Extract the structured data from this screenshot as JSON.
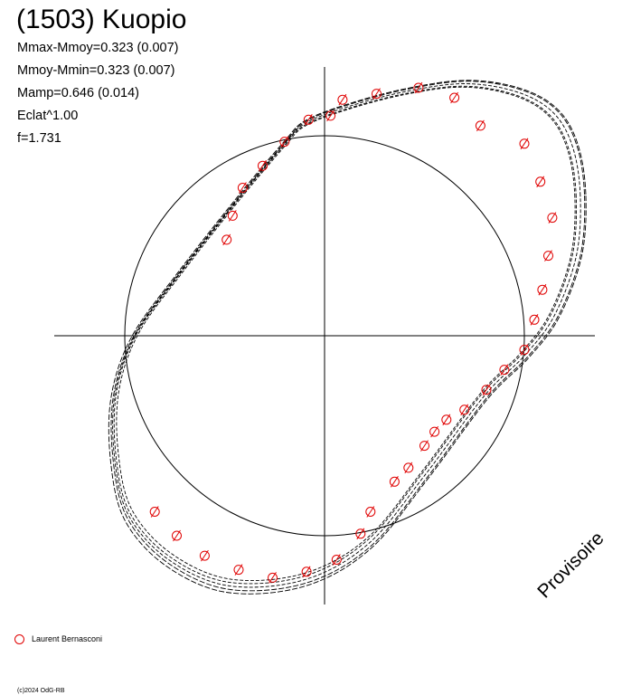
{
  "title": "(1503) Kuopio",
  "stats": {
    "mmax_mmoy": "Mmax-Mmoy=0.323 (0.007)",
    "mmoy_mmin": "Mmoy-Mmin=0.323 (0.007)",
    "mamp": "Mamp=0.646 (0.014)",
    "eclat": "Eclat^1.00",
    "f": "f=1.731"
  },
  "watermark": "Provisoire",
  "legend": {
    "label": "Laurent Bernasconi",
    "marker_color": "#e00000"
  },
  "copyright": "(c)2024 OdG-RB",
  "chart_data": {
    "type": "scatter",
    "projection": "polar lightcurve",
    "series": [
      {
        "name": "Laurent Bernasconi",
        "color": "#e00000",
        "points": [
          [
            0.03,
            1.1
          ],
          [
            0.09,
            1.18
          ],
          [
            0.26,
            1.21
          ],
          [
            0.47,
            1.24
          ],
          [
            0.65,
            1.19
          ],
          [
            0.78,
            1.05
          ],
          [
            1.0,
            0.96
          ],
          [
            1.08,
            0.77
          ],
          [
            1.14,
            0.59
          ],
          [
            1.12,
            0.4
          ],
          [
            1.09,
            0.23
          ],
          [
            1.05,
            0.08
          ],
          [
            1.0,
            -0.07
          ],
          [
            0.9,
            -0.17
          ],
          [
            0.81,
            -0.27
          ],
          [
            0.7,
            -0.37
          ],
          [
            0.61,
            -0.42
          ],
          [
            0.55,
            -0.48
          ],
          [
            0.5,
            -0.55
          ],
          [
            0.42,
            -0.66
          ],
          [
            0.35,
            -0.73
          ],
          [
            0.23,
            -0.88
          ],
          [
            0.18,
            -0.99
          ],
          [
            0.06,
            -1.12
          ],
          [
            -0.09,
            -1.18
          ],
          [
            -0.26,
            -1.21
          ],
          [
            -0.43,
            -1.17
          ],
          [
            -0.6,
            -1.1
          ],
          [
            -0.74,
            -1.0
          ],
          [
            -0.85,
            -0.88
          ],
          [
            -0.49,
            0.48
          ],
          [
            -0.46,
            0.6
          ],
          [
            -0.41,
            0.74
          ],
          [
            -0.31,
            0.85
          ],
          [
            -0.2,
            0.97
          ],
          [
            -0.08,
            1.08
          ]
        ]
      }
    ],
    "models": [
      {
        "name": "",
        "color": "#000000",
        "points": [
          [
            1.28,
            0.7
          ],
          [
            1.24,
            0.95
          ],
          [
            1.14,
            1.12
          ],
          [
            0.96,
            1.22
          ],
          [
            0.7,
            1.26
          ],
          [
            0.4,
            1.22
          ],
          [
            0.1,
            1.14
          ],
          [
            -0.1,
            1.06
          ],
          [
            -0.2,
            0.96
          ],
          [
            -0.42,
            0.7
          ],
          [
            -0.72,
            0.32
          ],
          [
            -0.95,
            0.0
          ],
          [
            -1.05,
            -0.3
          ],
          [
            -1.05,
            -0.62
          ],
          [
            -0.98,
            -0.9
          ],
          [
            -0.78,
            -1.12
          ],
          [
            -0.48,
            -1.25
          ],
          [
            -0.1,
            -1.22
          ],
          [
            0.22,
            -1.04
          ],
          [
            0.5,
            -0.7
          ],
          [
            0.8,
            -0.3
          ],
          [
            1.0,
            -0.1
          ],
          [
            1.15,
            0.1
          ],
          [
            1.26,
            0.4
          ]
        ]
      }
    ],
    "reference_circle_radius": 1.0,
    "axes": {
      "horizontal": true,
      "vertical": true
    },
    "xlim": [
      -1.35,
      1.35
    ],
    "ylim": [
      -1.35,
      1.35
    ]
  }
}
